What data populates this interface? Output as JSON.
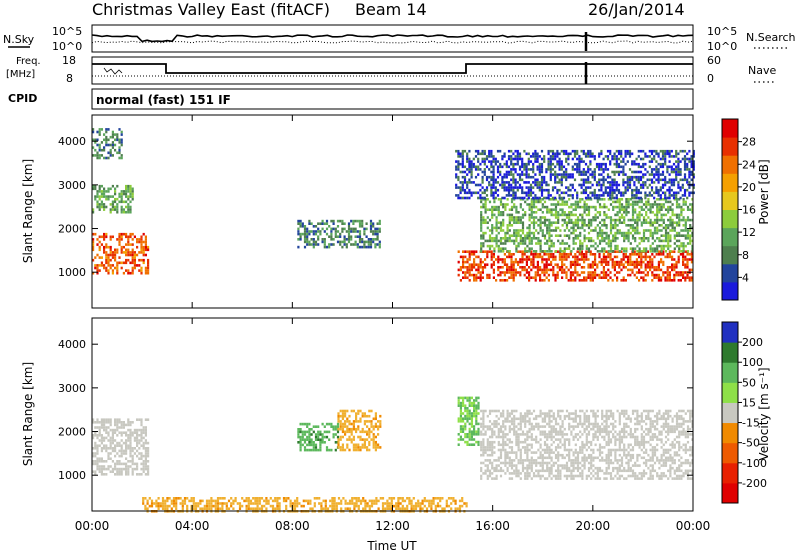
{
  "header": {
    "station_title": "Christmas Valley East (fitACF)",
    "beam": "Beam 14",
    "date": "26/Jan/2014",
    "mode": "normal (fast) 151 IF"
  },
  "status_panels": {
    "nsky_label": "N.Sky",
    "nsky_ticks": [
      "10^5",
      "10^0"
    ],
    "nsearch_label": "N.Search",
    "nsearch_ticks": [
      "10^5",
      "10^0"
    ],
    "freq_label_1": "Freq.",
    "freq_label_2": "[MHz]",
    "freq_ticks": [
      "18",
      "8"
    ],
    "nave_label": "Nave",
    "nave_ticks": [
      "60",
      "0"
    ],
    "cpid_label": "CPID"
  },
  "colors": {
    "power_scale": [
      "#1a1adc",
      "#22449c",
      "#4e7f4e",
      "#5ba55b",
      "#8ccc3c",
      "#e6c81e",
      "#f5a000",
      "#f07000",
      "#e83000",
      "#e00000"
    ],
    "velocity_scale": [
      "#2030c0",
      "#3a4aa8",
      "#2e7a2e",
      "#5cb85c",
      "#8ee048",
      "#c8c8c0",
      "#c8c8c0",
      "#f0b030",
      "#f08a00",
      "#ee5a00",
      "#e82000",
      "#e00000"
    ],
    "ground_scatter": "#c8c8c0"
  },
  "chart_data": [
    {
      "type": "heatmap",
      "title": "Power",
      "xlabel": "",
      "ylabel": "Slant Range [km]",
      "x_ticks": [
        "00:00",
        "04:00",
        "08:00",
        "12:00",
        "16:00",
        "20:00",
        "00:00"
      ],
      "y_ticks": [
        1000,
        2000,
        3000,
        4000
      ],
      "ylim": [
        180,
        4600
      ],
      "xlim_hours": [
        0,
        24
      ],
      "colorbar": {
        "label": "Power [dB]",
        "ticks": [
          4,
          8,
          12,
          16,
          20,
          24,
          28
        ]
      },
      "regions": [
        {
          "t0": 0.0,
          "t1": 2.2,
          "r0": 1000,
          "r1": 1900,
          "level": 26
        },
        {
          "t0": 0.0,
          "t1": 1.6,
          "r0": 2400,
          "r1": 3000,
          "level": 12
        },
        {
          "t0": 0.0,
          "t1": 1.2,
          "r0": 3600,
          "r1": 4300,
          "level": 10
        },
        {
          "t0": 8.2,
          "t1": 11.5,
          "r0": 1600,
          "r1": 2200,
          "level": 10
        },
        {
          "t0": 14.6,
          "t1": 24.0,
          "r0": 800,
          "r1": 1500,
          "level": 27
        },
        {
          "t0": 15.5,
          "t1": 24.0,
          "r0": 1500,
          "r1": 2700,
          "level": 13
        },
        {
          "t0": 14.5,
          "t1": 24.0,
          "r0": 2700,
          "r1": 3800,
          "level": 6
        }
      ]
    },
    {
      "type": "heatmap",
      "title": "Velocity",
      "xlabel": "Time UT",
      "ylabel": "Slant Range [km]",
      "x_ticks": [
        "00:00",
        "04:00",
        "08:00",
        "12:00",
        "16:00",
        "20:00",
        "00:00"
      ],
      "y_ticks": [
        1000,
        2000,
        3000,
        4000
      ],
      "ylim": [
        180,
        4600
      ],
      "xlim_hours": [
        0,
        24
      ],
      "colorbar": {
        "label": "Velocity [m s⁻¹]",
        "ticks": [
          200,
          100,
          50,
          15,
          -15,
          -50,
          -100,
          -200
        ]
      },
      "regions": [
        {
          "t0": 0.0,
          "t1": 2.2,
          "r0": 1000,
          "r1": 2300,
          "level": 0
        },
        {
          "t0": 8.2,
          "t1": 9.8,
          "r0": 1600,
          "r1": 2200,
          "level": 60
        },
        {
          "t0": 9.8,
          "t1": 11.5,
          "r0": 1600,
          "r1": 2500,
          "level": -40
        },
        {
          "t0": 14.6,
          "t1": 15.4,
          "r0": 1700,
          "r1": 2800,
          "level": 40
        },
        {
          "t0": 15.5,
          "t1": 24.0,
          "r0": 900,
          "r1": 2500,
          "level": 0
        },
        {
          "t0": 2.0,
          "t1": 15.0,
          "r0": 180,
          "r1": 500,
          "level": -40
        }
      ]
    }
  ]
}
